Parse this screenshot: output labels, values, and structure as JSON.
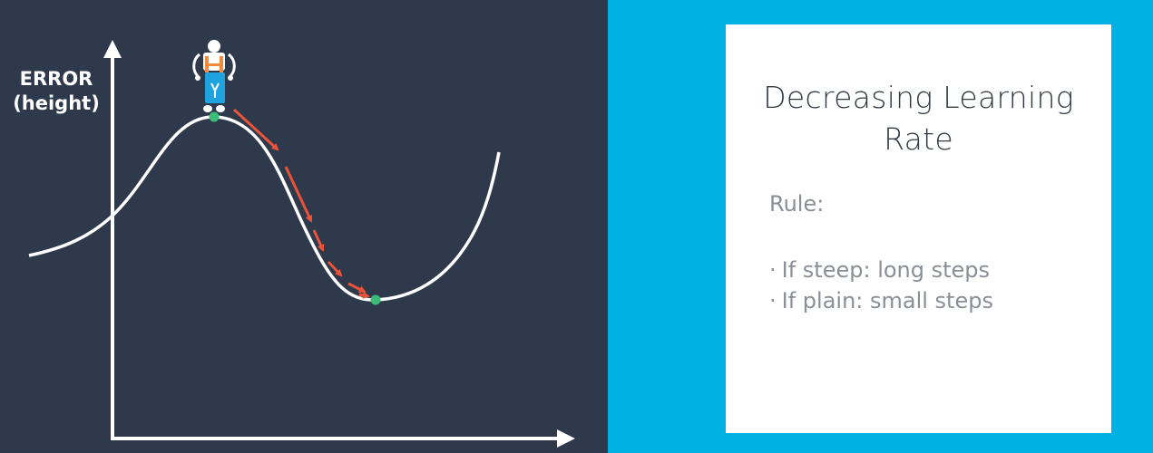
{
  "diagram": {
    "y_axis_label_line1": "ERROR",
    "y_axis_label_line2": "(height)",
    "colors": {
      "background": "#2e3a4b",
      "curve": "#ffffff",
      "arrow": "#e8533a",
      "point": "#3dbb78",
      "side_panel": "#00b2e3"
    },
    "icons": [
      "robot-icon"
    ]
  },
  "card": {
    "title_line1": "Decreasing Learning",
    "title_line2": "Rate",
    "rule_heading": "Rule:",
    "rules": [
      "If steep: long steps",
      "If plain: small steps"
    ],
    "bullet": "·"
  }
}
